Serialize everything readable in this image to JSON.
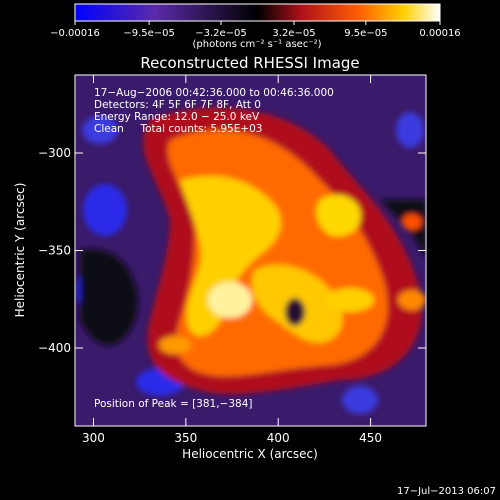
{
  "chart_data": {
    "type": "heatmap",
    "title": "Reconstructed RHESSI Image",
    "xlabel": "Heliocentric X (arcsec)",
    "ylabel": "Heliocentric Y (arcsec)",
    "xlim": [
      290,
      480
    ],
    "ylim": [
      -440,
      -260
    ],
    "x_ticks": [
      300,
      350,
      400,
      450
    ],
    "y_ticks": [
      -300,
      -350,
      -400
    ],
    "x_tick_labels": [
      "300",
      "350",
      "400",
      "450"
    ],
    "y_tick_labels": [
      "−300",
      "−350",
      "−400"
    ],
    "colorbar": {
      "range": [
        -0.00016,
        0.00016
      ],
      "tick_labels": [
        "−0.00016",
        "−9.5e−05",
        "−3.2e−05",
        "3.2e−05",
        "9.5e−05",
        "0.00016"
      ],
      "unit_label": "(photons cm⁻² s⁻¹ asec⁻²)"
    },
    "annotations": {
      "line1": "17−Aug−2006 00:42:36.000 to 00:46:36.000",
      "line2": "Detectors: 4F 5F 6F 7F 8F, Att 0",
      "line3": "Energy Range: 12.0 − 25.0 keV",
      "line4": "Clean     Total counts: 5.95E+03",
      "peak": "Position of Peak = [381,−384]"
    },
    "peak_position": [
      381,
      -384
    ],
    "timestamp": "17−Jul−2013 06:07",
    "colors": {
      "min": "#1a1aff",
      "neg_mid": "#6a3aa0",
      "zero": "#000000",
      "pos_low": "#c0101a",
      "pos_mid": "#ff8000",
      "pos_high": "#ffe000",
      "max": "#ffffff"
    }
  }
}
